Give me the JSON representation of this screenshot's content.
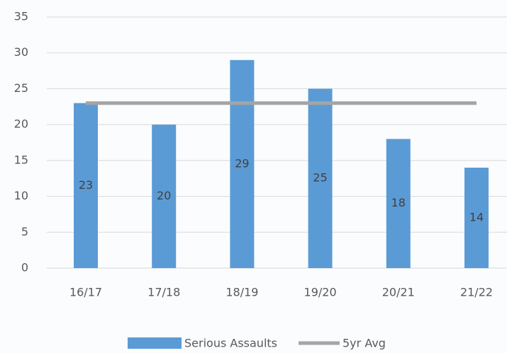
{
  "chart_data": {
    "type": "bar",
    "categories": [
      "16/17",
      "17/18",
      "18/19",
      "19/20",
      "20/21",
      "21/22"
    ],
    "series": [
      {
        "name": "Serious Assaults",
        "color": "#5b9bd5",
        "type": "bar",
        "values": [
          23,
          20,
          29,
          25,
          18,
          14
        ]
      },
      {
        "name": "5yr Avg",
        "color": "#a5a5a5",
        "type": "line",
        "values": [
          23,
          23,
          23,
          23,
          23,
          23
        ]
      }
    ],
    "ylim": [
      0,
      35
    ],
    "yticks": [
      0,
      5,
      10,
      15,
      20,
      25,
      30,
      35
    ],
    "grid": true,
    "legend": "bottom"
  }
}
